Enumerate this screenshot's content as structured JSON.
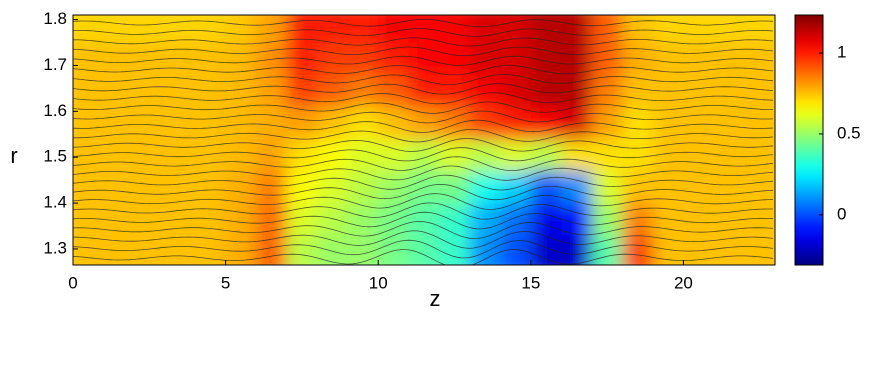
{
  "chart_data": {
    "type": "heatmap",
    "x_label": "z",
    "y_label": "r",
    "xlim": [
      0,
      23
    ],
    "ylim": [
      1.265,
      1.81
    ],
    "xticks": [
      0,
      5,
      10,
      15,
      20
    ],
    "yticks": [
      1.3,
      1.4,
      1.5,
      1.6,
      1.7,
      1.8
    ],
    "xbins": [
      0,
      1,
      2,
      3,
      4,
      5,
      6,
      7,
      8,
      9,
      10,
      11,
      12,
      13,
      14,
      15,
      16,
      17,
      18,
      19,
      20,
      21,
      22,
      23
    ],
    "ybins": [
      1.265,
      1.33,
      1.4,
      1.47,
      1.54,
      1.61,
      1.68,
      1.75,
      1.81
    ],
    "values": [
      [
        0.75,
        0.75,
        0.75,
        0.75,
        0.75,
        0.78,
        0.9,
        0.55,
        0.5,
        0.5,
        0.45,
        0.4,
        0.35,
        0.1,
        0.0,
        -0.2,
        -0.2,
        0.4,
        0.95,
        0.75,
        0.75,
        0.75,
        0.75
      ],
      [
        0.75,
        0.75,
        0.75,
        0.75,
        0.75,
        0.78,
        0.88,
        0.6,
        0.55,
        0.5,
        0.45,
        0.4,
        0.35,
        0.15,
        0.05,
        -0.15,
        -0.1,
        0.5,
        0.85,
        0.75,
        0.75,
        0.75,
        0.75
      ],
      [
        0.75,
        0.75,
        0.75,
        0.75,
        0.75,
        0.78,
        0.85,
        0.65,
        0.6,
        0.55,
        0.5,
        0.45,
        0.45,
        0.3,
        0.2,
        0.0,
        0.1,
        0.6,
        0.75,
        0.75,
        0.75,
        0.75,
        0.75
      ],
      [
        0.75,
        0.75,
        0.75,
        0.75,
        0.75,
        0.76,
        0.8,
        0.7,
        0.65,
        0.6,
        0.6,
        0.55,
        0.6,
        0.55,
        0.6,
        0.55,
        0.7,
        0.7,
        0.7,
        0.75,
        0.75,
        0.75,
        0.75
      ],
      [
        0.75,
        0.75,
        0.75,
        0.75,
        0.75,
        0.76,
        0.78,
        0.8,
        0.75,
        0.7,
        0.75,
        0.8,
        0.85,
        0.95,
        1.0,
        1.05,
        1.1,
        0.8,
        0.7,
        0.75,
        0.75,
        0.75,
        0.75
      ],
      [
        0.75,
        0.75,
        0.75,
        0.75,
        0.75,
        0.76,
        0.8,
        0.95,
        0.9,
        0.85,
        0.9,
        1.0,
        1.0,
        1.05,
        1.1,
        1.15,
        1.15,
        0.85,
        0.75,
        0.75,
        0.75,
        0.75,
        0.75
      ],
      [
        0.75,
        0.75,
        0.75,
        0.75,
        0.75,
        0.76,
        0.82,
        1.0,
        0.95,
        0.95,
        1.0,
        1.05,
        1.05,
        1.1,
        1.1,
        1.15,
        1.15,
        0.9,
        0.78,
        0.75,
        0.75,
        0.75,
        0.75
      ],
      [
        0.72,
        0.72,
        0.72,
        0.72,
        0.72,
        0.74,
        0.8,
        1.0,
        1.0,
        1.0,
        1.05,
        1.05,
        1.05,
        1.1,
        1.1,
        1.15,
        1.15,
        0.9,
        0.75,
        0.72,
        0.72,
        0.72,
        0.72
      ]
    ],
    "colormap": "jet",
    "clim": [
      -0.31,
      1.235
    ],
    "cticks": [
      0,
      0.5,
      1
    ]
  }
}
